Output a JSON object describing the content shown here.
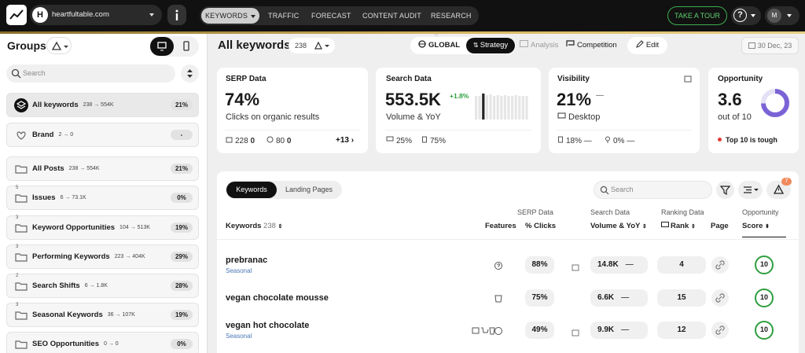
{
  "topbar": {
    "site": {
      "initial": "H",
      "name": "heartfultable.com"
    },
    "nav": [
      "KEYWORDS",
      "TRAFFIC",
      "FORECAST",
      "CONTENT AUDIT",
      "RESEARCH"
    ],
    "tour": "TAKE A TOUR",
    "help": "?",
    "avatar": "M"
  },
  "sidebar": {
    "title": "Groups",
    "search": "Search",
    "groups": [
      {
        "name": "All keywords",
        "stats": "238 → 554K",
        "share": "21%"
      },
      {
        "name": "Brand",
        "stats": "2 → 0",
        "share": "-"
      },
      {
        "name": "All Posts",
        "stats": "238 → 554K",
        "share": "21%"
      },
      {
        "name": "Issues",
        "badge": "5",
        "stats": "6 → 73.1K",
        "share": "0%"
      },
      {
        "name": "Keyword Opportunities",
        "badge": "3",
        "stats": "104 → 513K",
        "share": "19%"
      },
      {
        "name": "Performing Keywords",
        "badge": "3",
        "stats": "223 → 404K",
        "share": "29%"
      },
      {
        "name": "Search Shifts",
        "badge": "2",
        "stats": "6 → 1.8K",
        "share": "28%"
      },
      {
        "name": "Seasonal Keywords",
        "badge": "3",
        "stats": "36 → 107K",
        "share": "19%"
      },
      {
        "name": "SEO Opportunities",
        "stats": "0 → 0",
        "share": "0%"
      }
    ]
  },
  "header": {
    "title": "All keywords",
    "count": "238",
    "views": [
      "GLOBAL",
      "Strategy",
      "Analysis",
      "Competition"
    ],
    "edit": "Edit",
    "date": "30 Dec, 23"
  },
  "cards": {
    "serp": {
      "title": "SERP Data",
      "value": "74%",
      "label": "Clicks on organic results",
      "stats": [
        {
          "value": "228",
          "change": "0"
        },
        {
          "value": "80",
          "change": "0"
        }
      ],
      "more": "+13"
    },
    "search": {
      "title": "Search Data",
      "value": "553.5K",
      "change": "+1.8%",
      "label": "Volume & YoY",
      "stats": [
        "25%",
        "75%"
      ]
    },
    "visibility": {
      "title": "Visibility",
      "value": "21%",
      "change": "—",
      "label": "Desktop",
      "stats": [
        {
          "value": "18%",
          "change": "—"
        },
        {
          "value": "0%",
          "change": "—"
        }
      ]
    },
    "opportunity": {
      "title": "Opportunity",
      "value": "3.6",
      "label": "out of 10",
      "note": "Top 10 is tough"
    }
  },
  "table": {
    "tabs": [
      "Keywords",
      "Landing Pages"
    ],
    "search": "Search",
    "alerts": "7",
    "columns": {
      "keywords": "Keywords",
      "count": "238",
      "features": "Features",
      "serp": "SERP Data",
      "clicks": "% Clicks",
      "search": "Search Data",
      "volume": "Volume & YoY",
      "ranking": "Ranking Data",
      "rank": "Rank",
      "page": "Page",
      "opportunity": "Opportunity",
      "score": "Score"
    },
    "rows": [
      {
        "keyword": "prebranac",
        "tag": "Seasonal",
        "clicks": "88%",
        "volume": "14.8K",
        "yoy": "—",
        "rank": "4",
        "score": "10"
      },
      {
        "keyword": "vegan chocolate mousse",
        "clicks": "75%",
        "volume": "6.6K",
        "yoy": "—",
        "rank": "15",
        "score": "10"
      },
      {
        "keyword": "vegan hot chocolate",
        "tag": "Seasonal",
        "clicks": "49%",
        "volume": "9.9K",
        "yoy": "—",
        "rank": "12",
        "score": "10"
      }
    ]
  }
}
